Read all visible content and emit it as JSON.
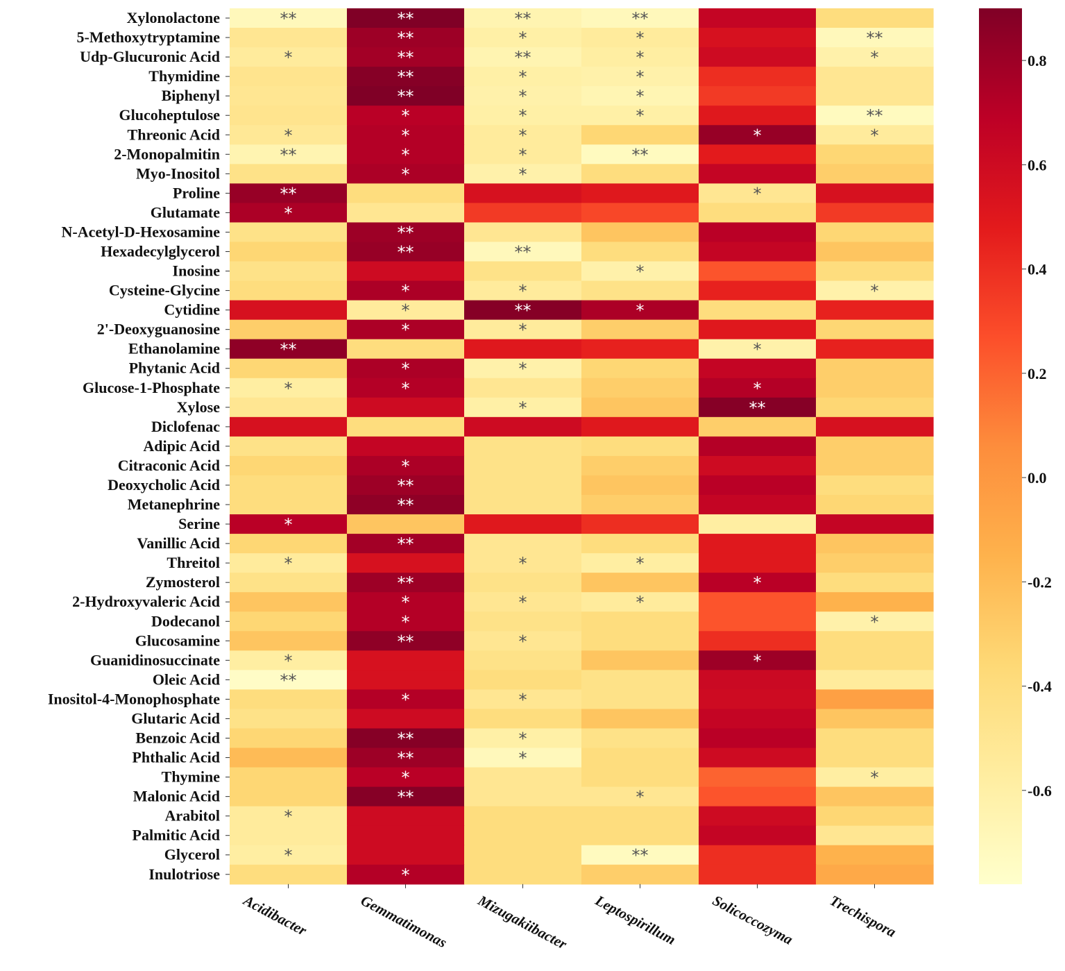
{
  "chart_data": {
    "type": "heatmap",
    "title": "",
    "xlabel": "",
    "ylabel": "",
    "columns": [
      "Acidibacter",
      "Gemmatimonas",
      "Mizugakiibacter",
      "Leptospirillum",
      "Solicoccozyma",
      "Trechispora"
    ],
    "rows": [
      "Xylonolactone",
      "5-Methoxytryptamine",
      "Udp-Glucuronic Acid",
      "Thymidine",
      "Biphenyl",
      "Glucoheptulose",
      "Threonic Acid",
      "2-Monopalmitin",
      "Myo-Inositol",
      "Proline",
      "Glutamate",
      "N-Acetyl-D-Hexosamine",
      "Hexadecylglycerol",
      "Inosine",
      "Cysteine-Glycine",
      "Cytidine",
      "2'-Deoxyguanosine",
      "Ethanolamine",
      "Phytanic Acid",
      "Glucose-1-Phosphate",
      "Xylose",
      "Diclofenac",
      "Adipic Acid",
      "Citraconic Acid",
      "Deoxycholic Acid",
      "Metanephrine",
      "Serine",
      "Vanillic Acid",
      "Threitol",
      "Zymosterol",
      "2-Hydroxyvaleric Acid",
      "Dodecanol",
      "Glucosamine",
      "Guanidinosuccinate",
      "Oleic Acid",
      "Inositol-4-Monophosphate",
      "Glutaric Acid",
      "Benzoic Acid",
      "Phthalic Acid",
      "Thymine",
      "Malonic Acid",
      "Arabitol",
      "Palmitic Acid",
      "Glycerol",
      "Inulotriose"
    ],
    "values": [
      [
        -0.7,
        0.9,
        -0.65,
        -0.7,
        0.65,
        -0.4
      ],
      [
        -0.5,
        0.8,
        -0.6,
        -0.55,
        0.55,
        -0.7
      ],
      [
        -0.55,
        0.78,
        -0.65,
        -0.58,
        0.6,
        -0.62
      ],
      [
        -0.48,
        0.88,
        -0.6,
        -0.62,
        0.4,
        -0.5
      ],
      [
        -0.5,
        0.9,
        -0.62,
        -0.66,
        0.35,
        -0.5
      ],
      [
        -0.48,
        0.7,
        -0.6,
        -0.6,
        0.5,
        -0.72
      ],
      [
        -0.52,
        0.72,
        -0.55,
        -0.35,
        0.82,
        -0.55
      ],
      [
        -0.65,
        0.72,
        -0.55,
        -0.72,
        0.48,
        -0.35
      ],
      [
        -0.45,
        0.75,
        -0.62,
        -0.4,
        0.65,
        -0.3
      ],
      [
        0.82,
        -0.4,
        0.55,
        0.5,
        -0.5,
        0.55
      ],
      [
        0.75,
        -0.5,
        0.35,
        0.3,
        -0.4,
        0.35
      ],
      [
        -0.45,
        0.8,
        -0.5,
        -0.25,
        0.7,
        -0.35
      ],
      [
        -0.35,
        0.82,
        -0.7,
        -0.4,
        0.65,
        -0.25
      ],
      [
        -0.45,
        0.6,
        -0.45,
        -0.62,
        0.25,
        -0.4
      ],
      [
        -0.4,
        0.75,
        -0.55,
        -0.45,
        0.45,
        -0.62
      ],
      [
        0.55,
        -0.55,
        0.88,
        0.75,
        -0.4,
        0.45
      ],
      [
        -0.3,
        0.75,
        -0.55,
        -0.3,
        0.5,
        -0.35
      ],
      [
        0.85,
        -0.4,
        0.5,
        0.45,
        -0.62,
        0.45
      ],
      [
        -0.35,
        0.75,
        -0.62,
        -0.35,
        0.65,
        -0.3
      ],
      [
        -0.58,
        0.72,
        -0.5,
        -0.3,
        0.72,
        -0.3
      ],
      [
        -0.5,
        0.6,
        -0.6,
        -0.25,
        0.88,
        -0.35
      ],
      [
        0.55,
        -0.4,
        0.6,
        0.5,
        -0.3,
        0.55
      ],
      [
        -0.45,
        0.65,
        -0.45,
        -0.4,
        0.72,
        -0.3
      ],
      [
        -0.35,
        0.75,
        -0.45,
        -0.3,
        0.6,
        -0.3
      ],
      [
        -0.4,
        0.8,
        -0.45,
        -0.25,
        0.7,
        -0.4
      ],
      [
        -0.4,
        0.85,
        -0.45,
        -0.3,
        0.65,
        -0.35
      ],
      [
        0.7,
        -0.25,
        0.5,
        0.4,
        -0.58,
        0.65
      ],
      [
        -0.35,
        0.78,
        -0.5,
        -0.4,
        0.5,
        -0.25
      ],
      [
        -0.55,
        0.55,
        -0.5,
        -0.58,
        0.5,
        -0.3
      ],
      [
        -0.45,
        0.8,
        -0.45,
        -0.25,
        0.7,
        -0.4
      ],
      [
        -0.25,
        0.72,
        -0.5,
        -0.55,
        0.25,
        -0.15
      ],
      [
        -0.35,
        0.72,
        -0.45,
        -0.4,
        0.25,
        -0.62
      ],
      [
        -0.25,
        0.85,
        -0.5,
        -0.4,
        0.4,
        -0.4
      ],
      [
        -0.58,
        0.55,
        -0.45,
        -0.25,
        0.8,
        -0.4
      ],
      [
        -0.75,
        0.55,
        -0.4,
        -0.45,
        0.62,
        -0.55
      ],
      [
        -0.4,
        0.72,
        -0.5,
        -0.45,
        0.6,
        -0.05
      ],
      [
        -0.45,
        0.6,
        -0.4,
        -0.25,
        0.65,
        -0.25
      ],
      [
        -0.35,
        0.88,
        -0.6,
        -0.45,
        0.7,
        -0.4
      ],
      [
        -0.2,
        0.8,
        -0.7,
        -0.4,
        0.6,
        -0.4
      ],
      [
        -0.35,
        0.7,
        -0.5,
        -0.4,
        0.2,
        -0.58
      ],
      [
        -0.35,
        0.88,
        -0.5,
        -0.5,
        0.25,
        -0.25
      ],
      [
        -0.55,
        0.6,
        -0.4,
        -0.4,
        0.6,
        -0.35
      ],
      [
        -0.55,
        0.6,
        -0.4,
        -0.4,
        0.65,
        -0.5
      ],
      [
        -0.58,
        0.6,
        -0.4,
        -0.72,
        0.4,
        -0.15
      ],
      [
        -0.4,
        0.72,
        -0.4,
        -0.3,
        0.4,
        -0.1
      ]
    ],
    "significance": [
      [
        "**",
        "**",
        "**",
        "**",
        "",
        ""
      ],
      [
        "",
        "**",
        "*",
        "*",
        "",
        "**"
      ],
      [
        "*",
        "**",
        "**",
        "*",
        "",
        "*"
      ],
      [
        "",
        "**",
        "*",
        "*",
        "",
        ""
      ],
      [
        "",
        "**",
        "*",
        "*",
        "",
        ""
      ],
      [
        "",
        "*",
        "*",
        "*",
        "",
        "**"
      ],
      [
        "*",
        "*",
        "*",
        "",
        "*",
        "*"
      ],
      [
        "**",
        "*",
        "*",
        "**",
        "",
        ""
      ],
      [
        "",
        "*",
        "*",
        "",
        "",
        ""
      ],
      [
        "**",
        "",
        "",
        "",
        "*",
        ""
      ],
      [
        "*",
        "",
        "",
        "",
        "",
        ""
      ],
      [
        "",
        "**",
        "",
        "",
        "",
        ""
      ],
      [
        "",
        "**",
        "**",
        "",
        "",
        ""
      ],
      [
        "",
        "",
        "",
        "*",
        "",
        ""
      ],
      [
        "",
        "*",
        "*",
        "",
        "",
        "*"
      ],
      [
        "",
        "*",
        "**",
        "*",
        "",
        ""
      ],
      [
        "",
        "*",
        "*",
        "",
        "",
        ""
      ],
      [
        "**",
        "",
        "",
        "",
        "*",
        ""
      ],
      [
        "",
        "*",
        "*",
        "",
        "",
        ""
      ],
      [
        "*",
        "*",
        "",
        "",
        "*",
        ""
      ],
      [
        "",
        "",
        "*",
        "",
        "**",
        ""
      ],
      [
        "",
        "",
        "",
        "",
        "",
        ""
      ],
      [
        "",
        "",
        "",
        "",
        "",
        ""
      ],
      [
        "",
        "*",
        "",
        "",
        "",
        ""
      ],
      [
        "",
        "**",
        "",
        "",
        "",
        ""
      ],
      [
        "",
        "**",
        "",
        "",
        "",
        ""
      ],
      [
        "*",
        "",
        "",
        "",
        "",
        ""
      ],
      [
        "",
        "**",
        "",
        "",
        "",
        ""
      ],
      [
        "*",
        "",
        "*",
        "*",
        "",
        ""
      ],
      [
        "",
        "**",
        "",
        "",
        "*",
        ""
      ],
      [
        "",
        "*",
        "*",
        "*",
        "",
        ""
      ],
      [
        "",
        "*",
        "",
        "",
        "",
        "*"
      ],
      [
        "",
        "**",
        "*",
        "",
        "",
        ""
      ],
      [
        "*",
        "",
        "",
        "",
        "*",
        ""
      ],
      [
        "**",
        "",
        "",
        "",
        "",
        ""
      ],
      [
        "",
        "*",
        "*",
        "",
        "",
        ""
      ],
      [
        "",
        "",
        "",
        "",
        "",
        ""
      ],
      [
        "",
        "**",
        "*",
        "",
        "",
        ""
      ],
      [
        "",
        "**",
        "*",
        "",
        "",
        ""
      ],
      [
        "",
        "*",
        "",
        "",
        "",
        "*"
      ],
      [
        "",
        "**",
        "",
        "*",
        "",
        ""
      ],
      [
        "*",
        "",
        "",
        "",
        "",
        ""
      ],
      [
        "",
        "",
        "",
        "",
        "",
        ""
      ],
      [
        "*",
        "",
        "",
        "**",
        "",
        ""
      ],
      [
        "",
        "*",
        "",
        "",
        "",
        ""
      ]
    ],
    "colorbar": {
      "range": [
        -0.78,
        0.9
      ],
      "ticks": [
        0.8,
        0.6,
        0.4,
        0.2,
        0.0,
        -0.2,
        -0.4,
        -0.6
      ],
      "tick_labels": [
        "0.8",
        "0.6",
        "0.4",
        "0.2",
        "0.0",
        "-0.2",
        "-0.4",
        "-0.6"
      ],
      "colormap": "YlOrRd",
      "stops": [
        "#ffffcc",
        "#ffeda0",
        "#fed976",
        "#feb24c",
        "#fd8d3c",
        "#fc4e2a",
        "#e31a1c",
        "#bd0026",
        "#800026"
      ]
    },
    "star_colors": {
      "light_bg": "#555555",
      "dark_bg": "#ffffff"
    }
  }
}
